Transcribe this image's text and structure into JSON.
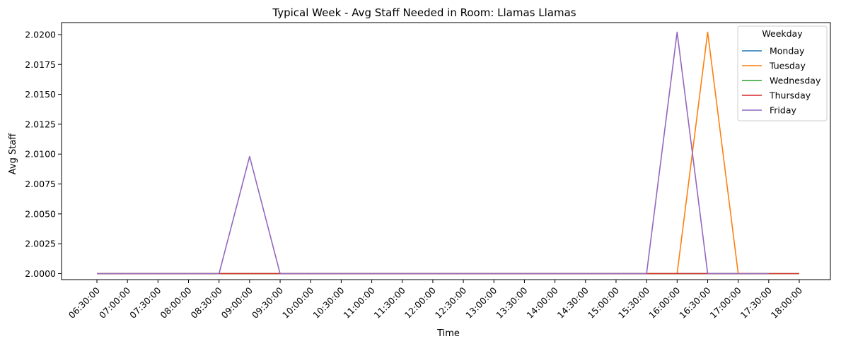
{
  "chart_data": {
    "type": "line",
    "title": "Typical Week - Avg Staff Needed in Room: Llamas Llamas",
    "xlabel": "Time",
    "ylabel": "Avg Staff",
    "categories": [
      "06:30:00",
      "07:00:00",
      "07:30:00",
      "08:00:00",
      "08:30:00",
      "09:00:00",
      "09:30:00",
      "10:00:00",
      "10:30:00",
      "11:00:00",
      "11:30:00",
      "12:00:00",
      "12:30:00",
      "13:00:00",
      "13:30:00",
      "14:00:00",
      "14:30:00",
      "15:00:00",
      "15:30:00",
      "16:00:00",
      "16:30:00",
      "17:00:00",
      "17:30:00",
      "18:00:00"
    ],
    "ylim": [
      1.9995,
      2.021
    ],
    "yticks": [
      "2.0000",
      "2.0025",
      "2.0050",
      "2.0075",
      "2.0100",
      "2.0125",
      "2.0150",
      "2.0175",
      "2.0200"
    ],
    "grid": false,
    "legend": {
      "title": "Weekday",
      "position": "top-right"
    },
    "series": [
      {
        "name": "Monday",
        "color": "#1f77b4",
        "values": [
          2,
          2,
          2,
          2,
          2,
          2,
          2,
          2,
          2,
          2,
          2,
          2,
          2,
          2,
          2,
          2,
          2,
          2,
          2,
          2,
          2,
          2,
          2,
          null
        ]
      },
      {
        "name": "Tuesday",
        "color": "#ff7f0e",
        "values": [
          2,
          2,
          2,
          2,
          2,
          2,
          2,
          2,
          2,
          2,
          2,
          2,
          2,
          2,
          2,
          2,
          2,
          2,
          2,
          2,
          2.0202,
          2,
          2,
          null
        ]
      },
      {
        "name": "Wednesday",
        "color": "#2ca02c",
        "values": [
          2,
          2,
          2,
          2,
          2,
          2,
          2,
          2,
          2,
          2,
          2,
          2,
          2,
          2,
          2,
          2,
          2,
          2,
          2,
          2,
          2,
          2,
          2,
          2
        ]
      },
      {
        "name": "Thursday",
        "color": "#d62728",
        "values": [
          2,
          2,
          2,
          2,
          2,
          2,
          2,
          2,
          2,
          2,
          2,
          2,
          2,
          2,
          2,
          2,
          2,
          2,
          2,
          2,
          2,
          2,
          2,
          2
        ]
      },
      {
        "name": "Friday",
        "color": "#9467bd",
        "values": [
          2,
          2,
          2,
          2,
          2,
          2.0098,
          2,
          2,
          2,
          2,
          2,
          2,
          2,
          2,
          2,
          2,
          2,
          2,
          2,
          2.0202,
          2,
          2,
          2,
          null
        ]
      }
    ]
  }
}
